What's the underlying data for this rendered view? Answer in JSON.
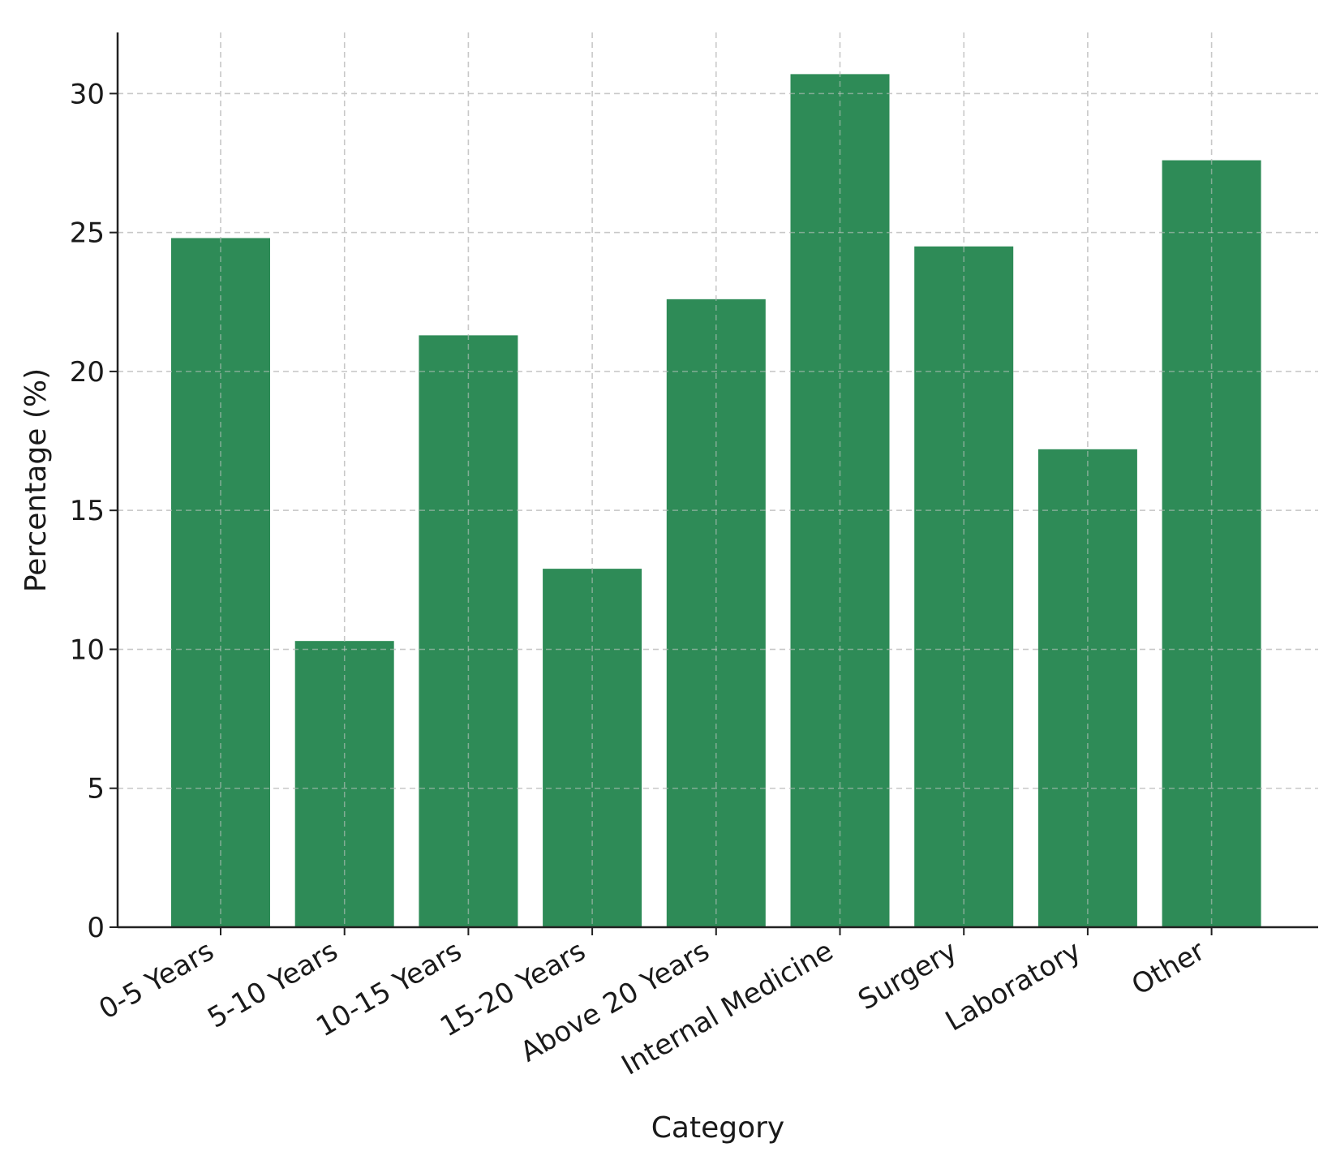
{
  "chart_data": {
    "type": "bar",
    "title": "",
    "xlabel": "Category",
    "ylabel": "Percentage (%)",
    "categories": [
      "0-5 Years",
      "5-10 Years",
      "10-15 Years",
      "15-20 Years",
      "Above 20 Years",
      "Internal Medicine",
      "Surgery",
      "Laboratory",
      "Other"
    ],
    "values": [
      24.8,
      10.3,
      21.3,
      12.9,
      22.6,
      30.7,
      24.5,
      17.2,
      27.6
    ],
    "ylim": [
      0,
      32.2
    ],
    "yticks": [
      0,
      5,
      10,
      15,
      20,
      25,
      30
    ],
    "grid": true,
    "bar_color": "#2e8b57"
  }
}
